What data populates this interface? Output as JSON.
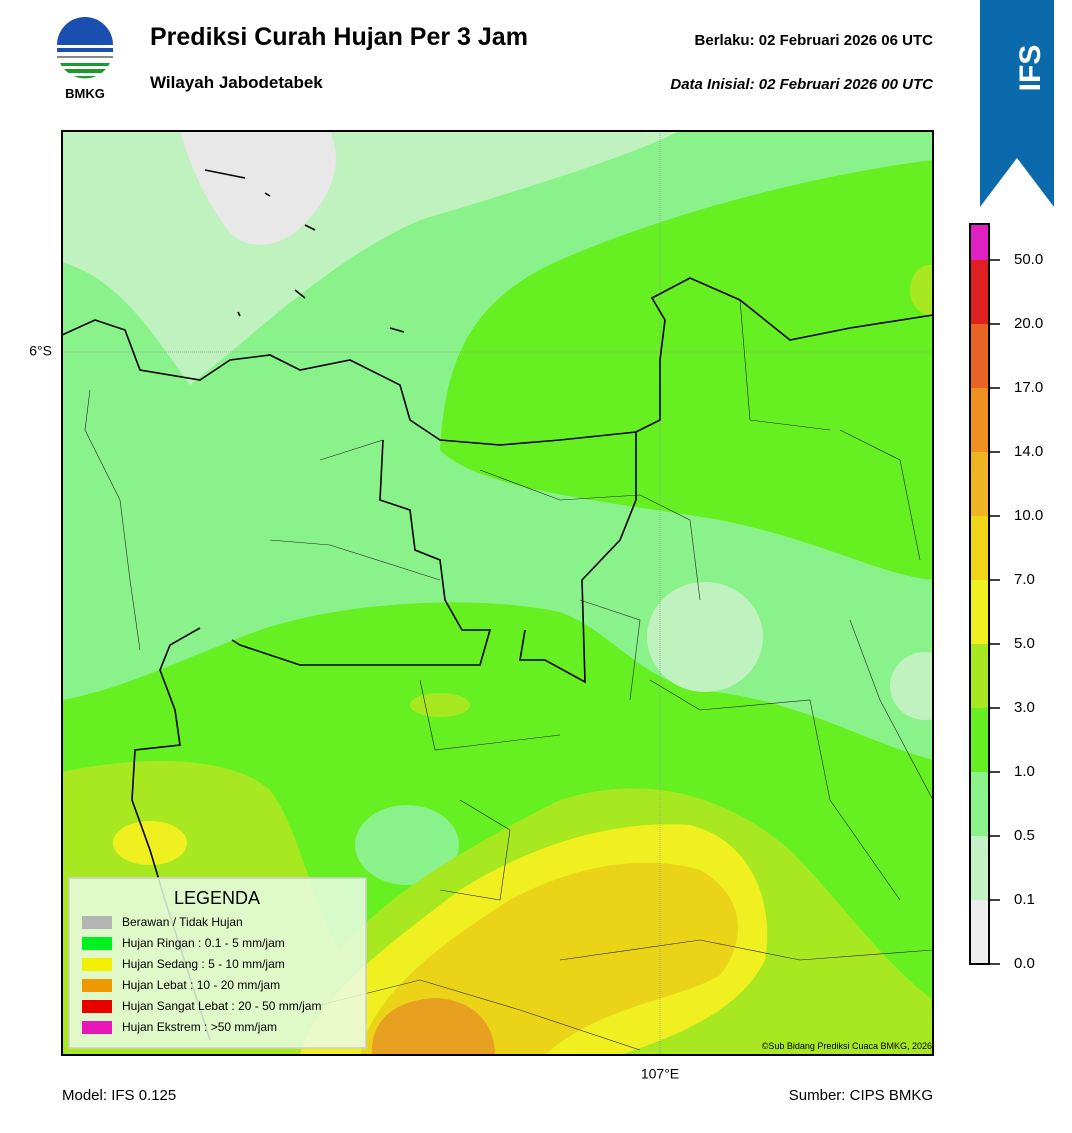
{
  "header": {
    "title": "Prediksi Curah Hujan Per 3 Jam",
    "subtitle": "Wilayah Jabodetabek",
    "valid": "Berlaku:  02 Februari 2026 06 UTC",
    "initial": "Data Inisial:  02 Februari 2026 00 UTC",
    "logo_text": "BMKG",
    "badge": "IFS"
  },
  "map": {
    "lat_label": "6°S",
    "lon_label": "107°E",
    "credit": "©Sub Bidang Prediksi Cuaca BMKG, 2026"
  },
  "legend": {
    "title": "LEGENDA",
    "items": [
      {
        "label": "Berawan / Tidak Hujan",
        "color": "#b4b4b4"
      },
      {
        "label": "Hujan Ringan : 0.1 - 5 mm/jam",
        "color": "#00f020"
      },
      {
        "label": "Hujan Sedang : 5 - 10 mm/jam",
        "color": "#f0f000"
      },
      {
        "label": "Hujan Lebat : 10 - 20 mm/jam",
        "color": "#f09800"
      },
      {
        "label": "Hujan Sangat Lebat : 20 - 50 mm/jam",
        "color": "#e80000"
      },
      {
        "label": "Hujan Ekstrem : >50 mm/jam",
        "color": "#e818b8"
      }
    ]
  },
  "colorbar": {
    "labels": [
      "0.0",
      "0.1",
      "0.5",
      "1.0",
      "3.0",
      "5.0",
      "7.0",
      "10.0",
      "14.0",
      "17.0",
      "20.0",
      "50.0"
    ],
    "colors": [
      "#ededed",
      "#c4f2c4",
      "#8cf28c",
      "#66ee22",
      "#a8e820",
      "#f0f020",
      "#f0d418",
      "#eeb422",
      "#ee9022",
      "#e86424",
      "#e02020",
      "#e020c0"
    ]
  },
  "footer": {
    "model": "Model: IFS 0.125",
    "source": "Sumber: CIPS BMKG"
  }
}
